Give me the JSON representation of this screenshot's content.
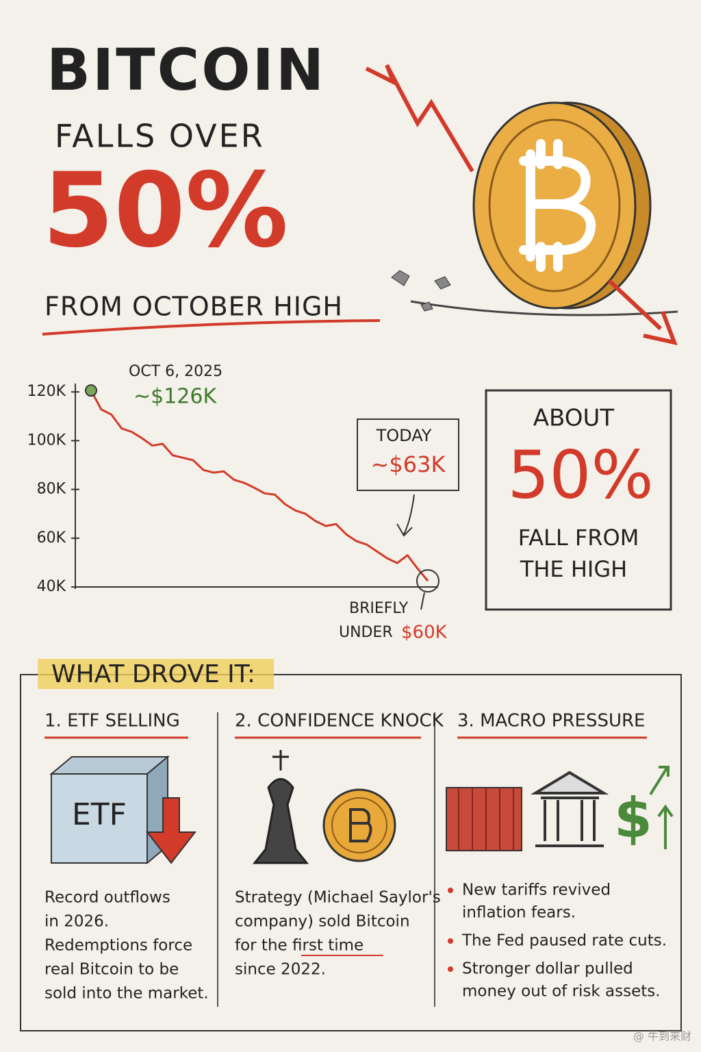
{
  "header": {
    "title": "BITCOIN",
    "subtitle": "FALLS OVER",
    "headline": "50%",
    "tagline": "FROM OCTOBER HIGH"
  },
  "chart_data": {
    "type": "line",
    "color": "#d23a2a",
    "values": [
      120.6,
      112.8,
      110.7,
      105,
      103.6,
      101,
      98,
      98.7,
      94,
      93,
      92,
      88,
      86.9,
      87.4,
      84,
      82.7,
      80.7,
      78.4,
      77.9,
      74,
      71.4,
      70,
      67,
      65,
      65.8,
      61.6,
      58.8,
      57.4,
      54.6,
      51.8,
      49.8,
      53,
      47.5,
      42.5
    ],
    "ylim": [
      40,
      124
    ],
    "yticks": [
      {
        "value": 40,
        "label": "40K"
      },
      {
        "value": 60,
        "label": "60K"
      },
      {
        "value": 80,
        "label": "80K"
      },
      {
        "value": 100,
        "label": "100K"
      },
      {
        "value": 120,
        "label": "120K"
      }
    ],
    "grid": false,
    "start_date": "OCT 6, 2025",
    "start_value": "~$126K",
    "today_label": "TODAY",
    "today_value": "~$63K",
    "low_label": [
      "BRIEFLY",
      "UNDER"
    ],
    "low_value": "$60K"
  },
  "callout": {
    "top": "ABOUT",
    "value": "50%",
    "lines": [
      "FALL FROM",
      "THE HIGH"
    ]
  },
  "drivers": {
    "title": "WHAT DROVE IT:",
    "columns": [
      {
        "title": "1. ETF SELLING",
        "icon_text": "ETF",
        "lines": [
          "Record outflows",
          "in 2026.",
          "Redemptions force",
          "real Bitcoin to be",
          "sold into the market."
        ]
      },
      {
        "title": "2. CONFIDENCE KNOCK",
        "lines": [
          "Strategy (Michael Saylor's",
          "company) sold Bitcoin",
          "for the first time",
          "since 2022."
        ]
      },
      {
        "title": "3. MACRO PRESSURE",
        "icon_text": "$",
        "bullets": [
          [
            "New tariffs revived",
            "inflation fears."
          ],
          [
            "The Fed paused rate cuts."
          ],
          [
            "Stronger dollar pulled",
            "money out of risk assets."
          ]
        ]
      }
    ]
  },
  "watermark": "@ 牛到来财"
}
